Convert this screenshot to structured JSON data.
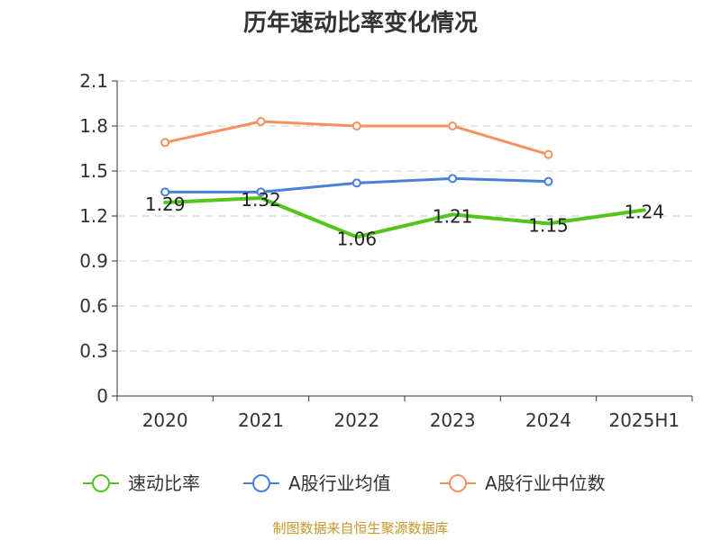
{
  "chart_data": {
    "type": "line",
    "title": "历年速动比率变化情况",
    "categories": [
      "2020",
      "2021",
      "2022",
      "2023",
      "2024",
      "2025H1"
    ],
    "ylim": [
      0,
      2.1
    ],
    "yticks": [
      "0",
      "0.3",
      "0.6",
      "0.9",
      "1.2",
      "1.5",
      "1.8",
      "2.1"
    ],
    "grid": true,
    "legend_position": "bottom",
    "series": [
      {
        "name": "速动比率",
        "color": "#52c41a",
        "values": [
          1.29,
          1.32,
          1.06,
          1.21,
          1.15,
          1.24
        ],
        "labels": [
          "1.29",
          "1.32",
          "1.06",
          "1.21",
          "1.15",
          "1.24"
        ]
      },
      {
        "name": "A股行业均值",
        "color": "#4a7fd9",
        "values": [
          1.36,
          1.36,
          1.42,
          1.45,
          1.43,
          null
        ]
      },
      {
        "name": "A股行业中位数",
        "color": "#f4915e",
        "values": [
          1.69,
          1.83,
          1.8,
          1.8,
          1.61,
          null
        ]
      }
    ]
  },
  "source": "制图数据来自恒生聚源数据库"
}
